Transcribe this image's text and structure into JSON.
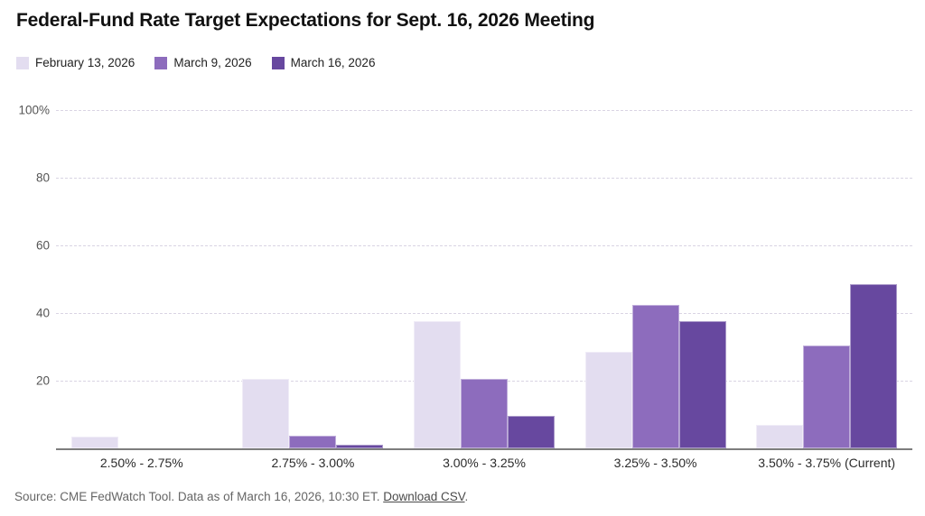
{
  "title": "Federal-Fund Rate Target Expectations for Sept. 16, 2026 Meeting",
  "source_note": {
    "prefix": "Source: CME FedWatch Tool. Data as of March 16, 2026, 10:30 ET. ",
    "link_label": "Download CSV",
    "suffix": "."
  },
  "colors": {
    "series_1": "#e3ddf0",
    "series_2": "#8d6cbd",
    "series_3": "#67489f",
    "gridline": "#d9d4e3",
    "baseline": "#7d7d7d"
  },
  "chart_data": {
    "type": "bar",
    "title": "Federal-Fund Rate Target Expectations for Sept. 16, 2026 Meeting",
    "categories": [
      "2.50% - 2.75%",
      "2.75% - 3.00%",
      "3.00% - 3.25%",
      "3.25% - 3.50%",
      "3.50% - 3.75% (Current)"
    ],
    "series": [
      {
        "name": "February 13, 2026",
        "color": "#e3ddf0",
        "values": [
          3.5,
          20.5,
          37.5,
          28.5,
          7
        ]
      },
      {
        "name": "March 9, 2026",
        "color": "#8d6cbd",
        "values": [
          0,
          3.7,
          20.5,
          42.5,
          30.5
        ]
      },
      {
        "name": "March 16, 2026",
        "color": "#67489f",
        "values": [
          0,
          1.2,
          9.5,
          37.5,
          48.5
        ]
      }
    ],
    "xlabel": "",
    "ylabel": "",
    "ylim": [
      0,
      100
    ],
    "y_ticks": [
      {
        "value": 100,
        "label": "100%"
      },
      {
        "value": 80,
        "label": "80"
      },
      {
        "value": 60,
        "label": "60"
      },
      {
        "value": 40,
        "label": "40"
      },
      {
        "value": 20,
        "label": "20"
      }
    ],
    "grid": "horizontal-dashed",
    "legend_position": "top-left"
  }
}
